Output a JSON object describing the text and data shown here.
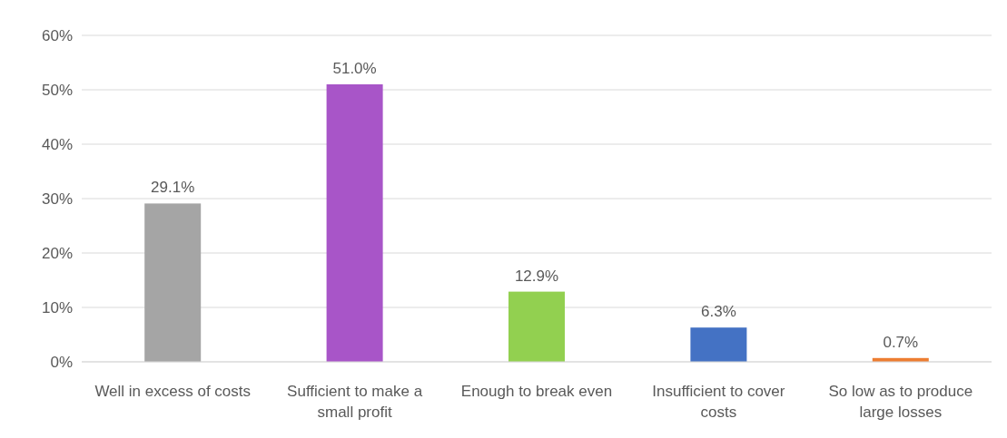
{
  "chart_data": {
    "type": "bar",
    "categories": [
      "Well in excess of costs",
      "Sufficient to make a small profit",
      "Enough to break even",
      "Insufficient to cover costs",
      "So low as to produce large losses"
    ],
    "values": [
      29.1,
      51.0,
      12.9,
      6.3,
      0.7
    ],
    "colors": [
      "#a5a5a5",
      "#a855c8",
      "#92d050",
      "#4472c4",
      "#ed7d31"
    ],
    "value_labels": [
      "29.1%",
      "51.0%",
      "12.9%",
      "6.3%",
      "0.7%"
    ],
    "ylim": [
      0,
      60
    ],
    "yticks": [
      {
        "value": 0,
        "label": "0%"
      },
      {
        "value": 10,
        "label": "10%"
      },
      {
        "value": 20,
        "label": "20%"
      },
      {
        "value": 30,
        "label": "30%"
      },
      {
        "value": 40,
        "label": "40%"
      },
      {
        "value": 50,
        "label": "50%"
      },
      {
        "value": 60,
        "label": "60%"
      }
    ],
    "grid": "y"
  }
}
